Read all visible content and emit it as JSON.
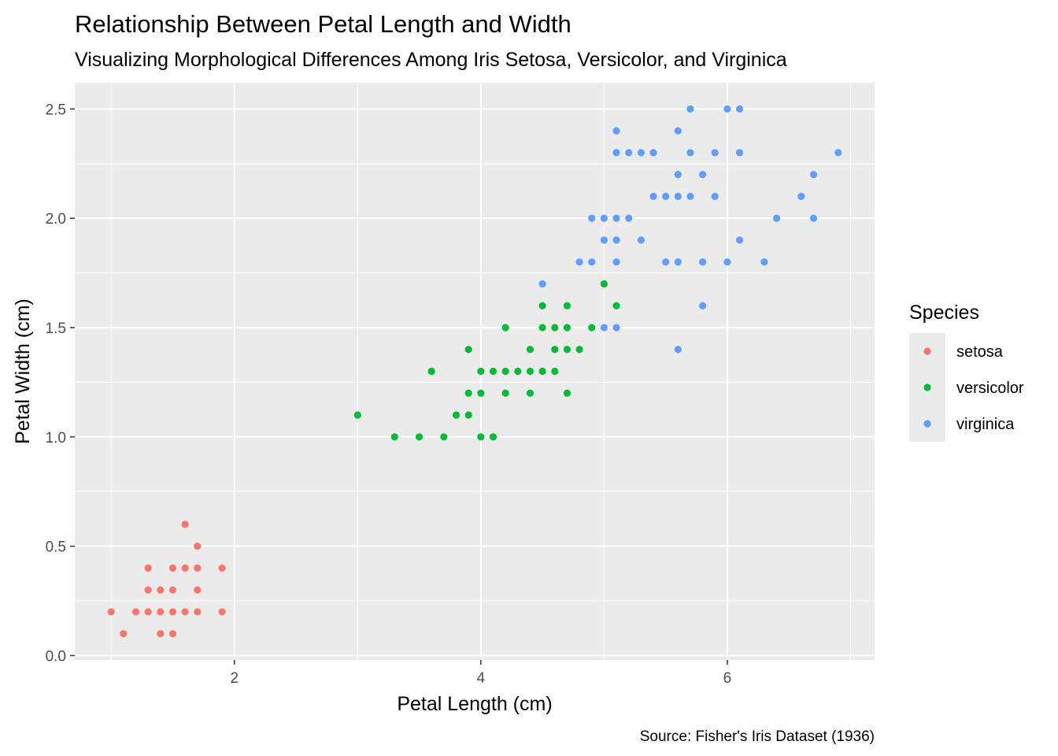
{
  "chart_data": {
    "type": "scatter",
    "title": "Relationship Between Petal Length and Width",
    "subtitle": "Visualizing Morphological Differences Among Iris Setosa, Versicolor, and Virginica",
    "xlabel": "Petal Length (cm)",
    "ylabel": "Petal Width (cm)",
    "caption": "Source: Fisher's Iris Dataset (1936)",
    "xlim": [
      0.705,
      7.195
    ],
    "ylim": [
      -0.02,
      2.62
    ],
    "x_ticks": [
      2,
      4,
      6
    ],
    "x_tick_labels": [
      "2",
      "4",
      "6"
    ],
    "y_ticks": [
      0,
      0.5,
      1,
      1.5,
      2,
      2.5
    ],
    "y_tick_labels": [
      "0.0",
      "0.5",
      "1.0",
      "1.5",
      "2.0",
      "2.5"
    ],
    "grid": true,
    "legend": {
      "title": "Species",
      "position": "right"
    },
    "series": [
      {
        "name": "setosa",
        "color": "#F8766D",
        "points": [
          [
            1.0,
            0.2
          ],
          [
            1.1,
            0.1
          ],
          [
            1.2,
            0.2
          ],
          [
            1.3,
            0.2
          ],
          [
            1.3,
            0.3
          ],
          [
            1.3,
            0.4
          ],
          [
            1.4,
            0.1
          ],
          [
            1.4,
            0.2
          ],
          [
            1.4,
            0.3
          ],
          [
            1.5,
            0.1
          ],
          [
            1.5,
            0.2
          ],
          [
            1.5,
            0.3
          ],
          [
            1.5,
            0.4
          ],
          [
            1.6,
            0.2
          ],
          [
            1.6,
            0.4
          ],
          [
            1.6,
            0.6
          ],
          [
            1.7,
            0.2
          ],
          [
            1.7,
            0.3
          ],
          [
            1.7,
            0.4
          ],
          [
            1.7,
            0.5
          ],
          [
            1.9,
            0.2
          ],
          [
            1.9,
            0.4
          ]
        ]
      },
      {
        "name": "versicolor",
        "color": "#00BA38",
        "points": [
          [
            3.0,
            1.1
          ],
          [
            3.3,
            1.0
          ],
          [
            3.5,
            1.0
          ],
          [
            3.6,
            1.3
          ],
          [
            3.7,
            1.0
          ],
          [
            3.8,
            1.1
          ],
          [
            3.9,
            1.1
          ],
          [
            3.9,
            1.2
          ],
          [
            3.9,
            1.4
          ],
          [
            4.0,
            1.0
          ],
          [
            4.0,
            1.2
          ],
          [
            4.0,
            1.3
          ],
          [
            4.1,
            1.0
          ],
          [
            4.1,
            1.3
          ],
          [
            4.2,
            1.2
          ],
          [
            4.2,
            1.3
          ],
          [
            4.2,
            1.5
          ],
          [
            4.3,
            1.3
          ],
          [
            4.4,
            1.2
          ],
          [
            4.4,
            1.3
          ],
          [
            4.4,
            1.4
          ],
          [
            4.5,
            1.3
          ],
          [
            4.5,
            1.5
          ],
          [
            4.5,
            1.6
          ],
          [
            4.6,
            1.3
          ],
          [
            4.6,
            1.4
          ],
          [
            4.6,
            1.5
          ],
          [
            4.7,
            1.2
          ],
          [
            4.7,
            1.4
          ],
          [
            4.7,
            1.5
          ],
          [
            4.7,
            1.6
          ],
          [
            4.8,
            1.4
          ],
          [
            4.9,
            1.5
          ],
          [
            5.0,
            1.7
          ],
          [
            5.1,
            1.6
          ]
        ]
      },
      {
        "name": "virginica",
        "color": "#619CFF",
        "points": [
          [
            4.5,
            1.7
          ],
          [
            4.8,
            1.8
          ],
          [
            4.9,
            1.8
          ],
          [
            4.9,
            2.0
          ],
          [
            5.0,
            1.5
          ],
          [
            5.0,
            1.9
          ],
          [
            5.0,
            2.0
          ],
          [
            5.1,
            1.5
          ],
          [
            5.1,
            1.8
          ],
          [
            5.1,
            1.9
          ],
          [
            5.1,
            2.0
          ],
          [
            5.1,
            2.3
          ],
          [
            5.1,
            2.4
          ],
          [
            5.2,
            2.0
          ],
          [
            5.2,
            2.3
          ],
          [
            5.3,
            1.9
          ],
          [
            5.3,
            2.3
          ],
          [
            5.4,
            2.1
          ],
          [
            5.4,
            2.3
          ],
          [
            5.5,
            1.8
          ],
          [
            5.5,
            2.1
          ],
          [
            5.6,
            1.4
          ],
          [
            5.6,
            1.8
          ],
          [
            5.6,
            2.1
          ],
          [
            5.6,
            2.2
          ],
          [
            5.6,
            2.4
          ],
          [
            5.7,
            2.1
          ],
          [
            5.7,
            2.3
          ],
          [
            5.7,
            2.5
          ],
          [
            5.8,
            1.6
          ],
          [
            5.8,
            1.8
          ],
          [
            5.8,
            2.2
          ],
          [
            5.9,
            2.1
          ],
          [
            5.9,
            2.3
          ],
          [
            6.0,
            1.8
          ],
          [
            6.0,
            2.5
          ],
          [
            6.1,
            1.9
          ],
          [
            6.1,
            2.3
          ],
          [
            6.1,
            2.5
          ],
          [
            6.3,
            1.8
          ],
          [
            6.4,
            2.0
          ],
          [
            6.6,
            2.1
          ],
          [
            6.7,
            2.0
          ],
          [
            6.7,
            2.2
          ],
          [
            6.9,
            2.3
          ]
        ]
      }
    ]
  }
}
